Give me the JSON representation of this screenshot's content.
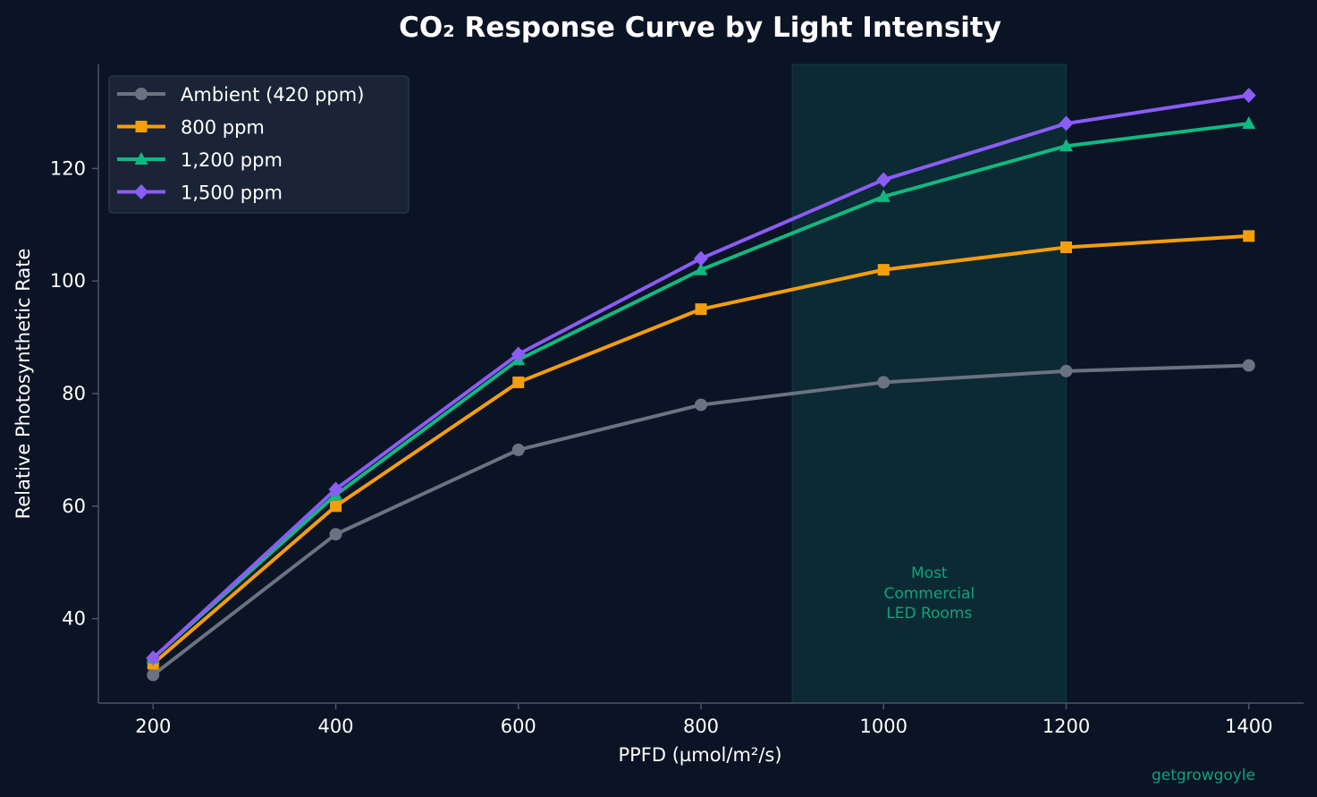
{
  "chart_data": {
    "type": "line",
    "title": "CO₂ Response Curve by Light Intensity",
    "xlabel": "PPFD (µmol/m²/s)",
    "ylabel": "Relative Photosynthetic Rate",
    "x": [
      200,
      400,
      600,
      800,
      1000,
      1200,
      1400
    ],
    "x_ticks": [
      "200",
      "400",
      "600",
      "800",
      "1000",
      "1200",
      "1400"
    ],
    "y_ticks": [
      "40",
      "60",
      "80",
      "100",
      "120"
    ],
    "xlim": [
      140,
      1460
    ],
    "ylim": [
      25,
      138.5
    ],
    "grid": false,
    "legend_position": "top-left",
    "series": [
      {
        "name": "Ambient (420 ppm)",
        "color": "#6b7280",
        "marker": "circle",
        "values": [
          30,
          55,
          70,
          78,
          82,
          84,
          85
        ]
      },
      {
        "name": "800 ppm",
        "color": "#f59e0b",
        "marker": "square",
        "values": [
          32,
          60,
          82,
          95,
          102,
          106,
          108
        ]
      },
      {
        "name": "1,200 ppm",
        "color": "#10b981",
        "marker": "triangle",
        "values": [
          33,
          62,
          86,
          102,
          115,
          124,
          128
        ]
      },
      {
        "name": "1,500 ppm",
        "color": "#8b5cf6",
        "marker": "diamond",
        "values": [
          33,
          63,
          87,
          104,
          118,
          128,
          133
        ]
      }
    ],
    "highlight_band": {
      "x_range": [
        900,
        1200
      ],
      "label_lines": [
        "Most",
        "Commercial",
        "LED Rooms"
      ],
      "color": "#0d3b3a"
    }
  },
  "watermark": "getgrowgoyle",
  "colors": {
    "background": "#0b1425",
    "axis": "#4b5563",
    "legend_bg": "#1a2436",
    "annotation": "#10a37a"
  }
}
